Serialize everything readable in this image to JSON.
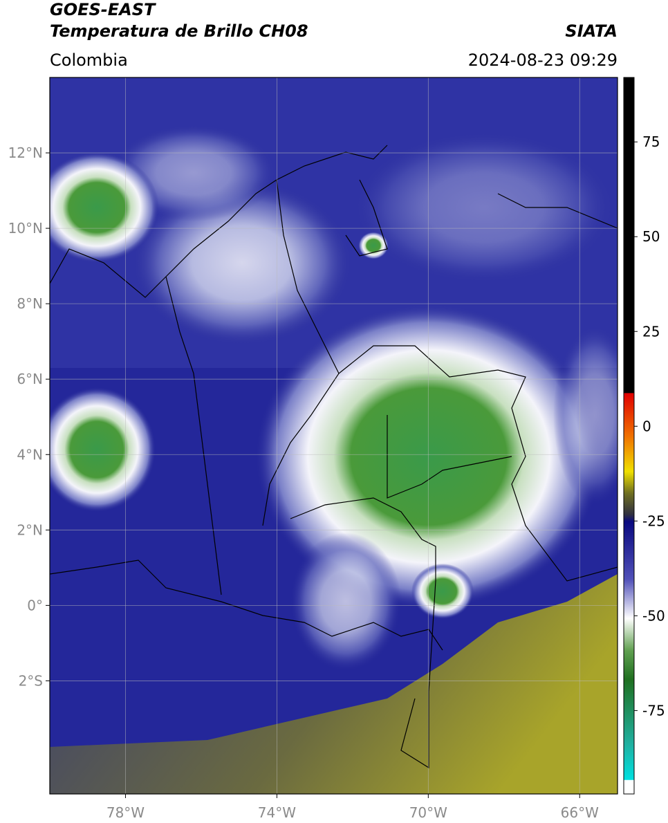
{
  "header": {
    "title": "GOES-EAST",
    "subtitle": "Temperatura de Brillo CH08",
    "source": "SIATA",
    "region": "Colombia",
    "datetime": "2024-08-23 09:29"
  },
  "map": {
    "xlim": [
      -80,
      -65
    ],
    "ylim": [
      -5,
      14
    ],
    "xticks": [
      {
        "value": -78,
        "label": "78°W"
      },
      {
        "value": -74,
        "label": "74°W"
      },
      {
        "value": -70,
        "label": "70°W"
      },
      {
        "value": -66,
        "label": "66°W"
      }
    ],
    "yticks": [
      {
        "value": 12,
        "label": "12°N"
      },
      {
        "value": 10,
        "label": "10°N"
      },
      {
        "value": 8,
        "label": "8°N"
      },
      {
        "value": 6,
        "label": "6°N"
      },
      {
        "value": 4,
        "label": "4°N"
      },
      {
        "value": 2,
        "label": "2°N"
      },
      {
        "value": 0,
        "label": "0°"
      },
      {
        "value": -2,
        "label": "2°S"
      }
    ],
    "grid": true
  },
  "colorbar": {
    "lim": [
      -97,
      92
    ],
    "ticks": [
      75,
      50,
      25,
      0,
      -25,
      -50,
      -75
    ]
  }
}
